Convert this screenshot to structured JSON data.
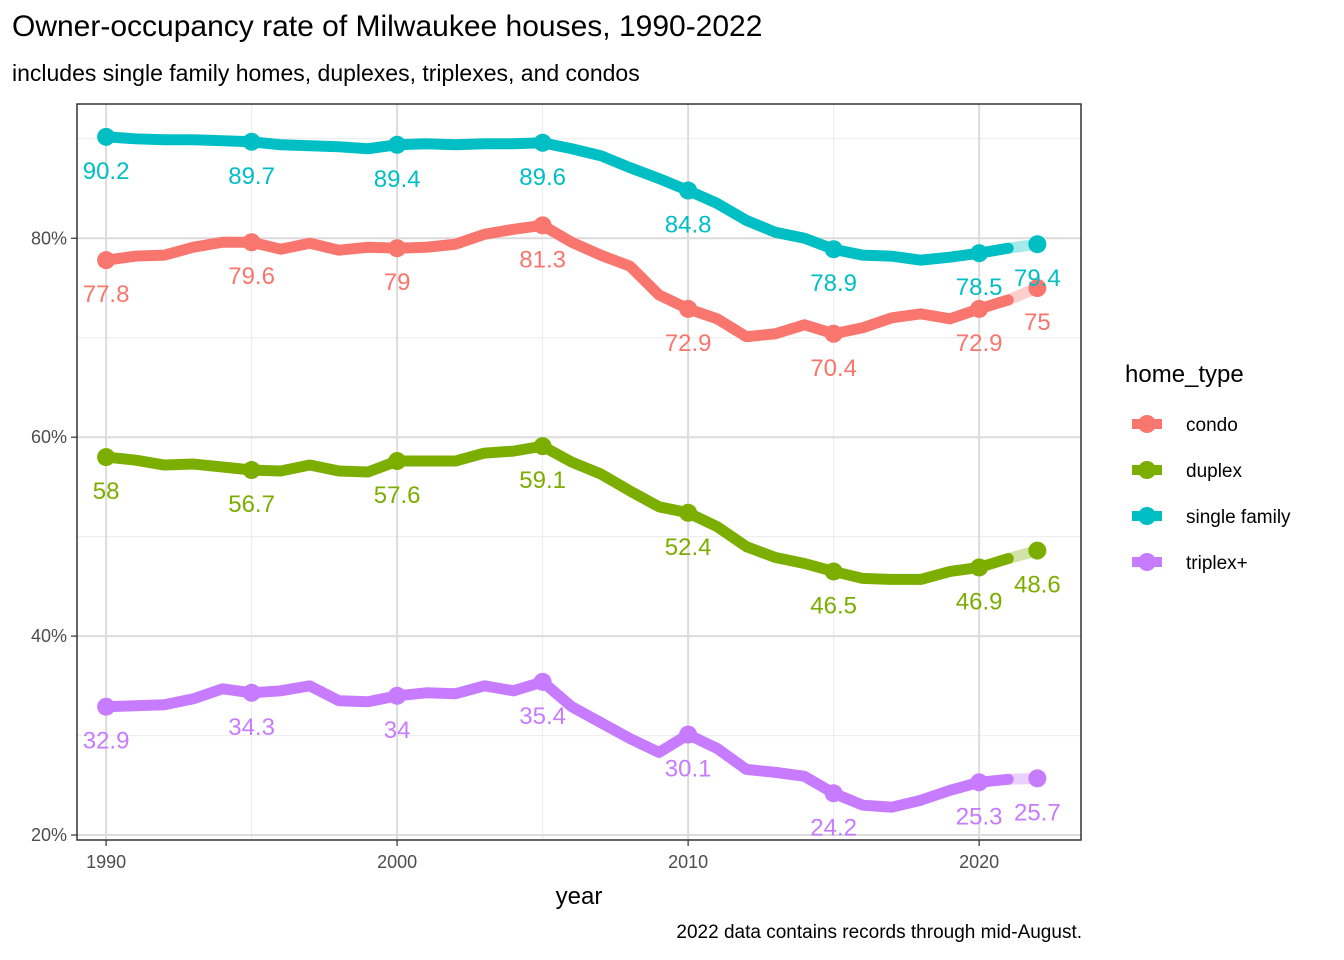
{
  "chart_data": {
    "type": "line",
    "title": "Owner-occupancy rate of Milwaukee houses, 1990-2022",
    "subtitle": "includes single family homes, duplexes, triplexes, and condos",
    "xlabel": "year",
    "ylabel": "",
    "caption": "2022 data contains records through mid-August.",
    "xlim": [
      1989,
      2023.5
    ],
    "ylim": [
      19.5,
      93.5
    ],
    "xticks": [
      1990,
      2000,
      2010,
      2020
    ],
    "yticks": [
      20,
      40,
      60,
      80
    ],
    "ytick_labels": [
      "20%",
      "40%",
      "60%",
      "80%"
    ],
    "grid": true,
    "legend": {
      "title": "home_type",
      "position": "right"
    },
    "x": [
      1990,
      1991,
      1992,
      1993,
      1994,
      1995,
      1996,
      1997,
      1998,
      1999,
      2000,
      2001,
      2002,
      2003,
      2004,
      2005,
      2006,
      2007,
      2008,
      2009,
      2010,
      2011,
      2012,
      2013,
      2014,
      2015,
      2016,
      2017,
      2018,
      2019,
      2020,
      2021,
      2022
    ],
    "labeled_years": [
      1990,
      1995,
      2000,
      2005,
      2010,
      2015,
      2020,
      2022
    ],
    "series": [
      {
        "name": "condo",
        "color": "#F8766D",
        "values": [
          77.8,
          78.2,
          78.3,
          79.1,
          79.6,
          79.6,
          78.9,
          79.5,
          78.8,
          79.1,
          79.0,
          79.1,
          79.4,
          80.4,
          80.9,
          81.3,
          79.6,
          78.3,
          77.2,
          74.3,
          72.9,
          71.9,
          70.1,
          70.4,
          71.3,
          70.4,
          71.0,
          72.0,
          72.4,
          71.9,
          72.9,
          73.8,
          75.0
        ],
        "labels": [
          "77.8",
          "79.6",
          "79",
          "81.3",
          "72.9",
          "70.4",
          "72.9",
          "75"
        ]
      },
      {
        "name": "duplex",
        "color": "#7CAE00",
        "values": [
          58.0,
          57.7,
          57.2,
          57.3,
          57.0,
          56.7,
          56.6,
          57.2,
          56.6,
          56.5,
          57.6,
          57.6,
          57.6,
          58.4,
          58.6,
          59.1,
          57.5,
          56.3,
          54.6,
          53.0,
          52.4,
          51.0,
          49.0,
          47.9,
          47.3,
          46.5,
          45.8,
          45.7,
          45.7,
          46.5,
          46.9,
          47.8,
          48.6
        ],
        "labels": [
          "58",
          "56.7",
          "57.6",
          "59.1",
          "52.4",
          "46.5",
          "46.9",
          "48.6"
        ]
      },
      {
        "name": "single family",
        "color": "#00BFC4",
        "values": [
          90.2,
          90.0,
          89.9,
          89.9,
          89.8,
          89.7,
          89.4,
          89.3,
          89.2,
          89.0,
          89.4,
          89.5,
          89.4,
          89.5,
          89.5,
          89.6,
          89.0,
          88.3,
          87.1,
          86.0,
          84.8,
          83.5,
          81.8,
          80.6,
          80.0,
          78.9,
          78.3,
          78.2,
          77.8,
          78.1,
          78.5,
          79.0,
          79.4
        ],
        "labels": [
          "90.2",
          "89.7",
          "89.4",
          "89.6",
          "84.8",
          "78.9",
          "78.5",
          "79.4"
        ]
      },
      {
        "name": "triplex+",
        "color": "#C77CFF",
        "values": [
          32.9,
          33.0,
          33.1,
          33.7,
          34.7,
          34.3,
          34.5,
          35.0,
          33.5,
          33.4,
          34.0,
          34.3,
          34.2,
          35.0,
          34.5,
          35.4,
          32.9,
          31.3,
          29.7,
          28.3,
          30.1,
          28.7,
          26.6,
          26.3,
          25.9,
          24.2,
          23.0,
          22.8,
          23.5,
          24.5,
          25.3,
          25.6,
          25.7
        ],
        "labels": [
          "32.9",
          "34.3",
          "34",
          "35.4",
          "30.1",
          "24.2",
          "25.3",
          "25.7"
        ]
      }
    ]
  }
}
